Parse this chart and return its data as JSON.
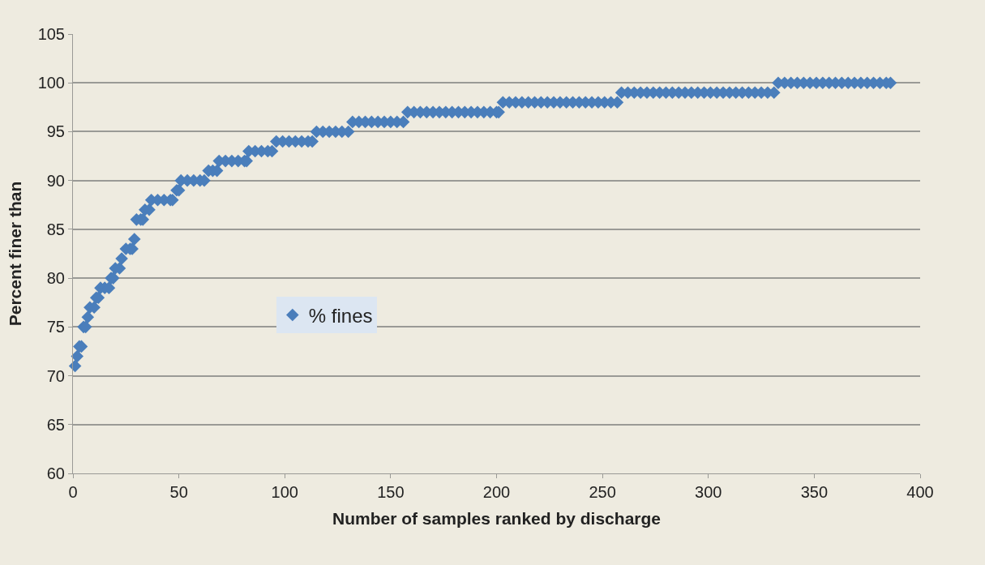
{
  "chart_data": {
    "type": "scatter",
    "xlabel": "Number of samples ranked by discharge",
    "ylabel": "Percent finer than",
    "x": [
      1,
      2,
      3,
      4,
      5,
      6,
      7,
      8,
      10,
      11,
      12,
      13,
      15,
      17,
      18,
      19,
      20,
      22,
      23,
      25,
      27,
      28,
      29,
      30,
      32,
      33,
      34,
      36,
      37,
      40,
      43,
      46,
      47,
      49,
      50,
      51,
      54,
      57,
      60,
      62,
      64,
      66,
      68,
      69,
      72,
      75,
      78,
      81,
      82,
      83,
      86,
      89,
      92,
      94,
      96,
      99,
      102,
      105,
      108,
      111,
      113,
      115,
      118,
      121,
      124,
      127,
      130,
      132,
      135,
      138,
      141,
      144,
      147,
      150,
      153,
      156,
      158,
      161,
      164,
      167,
      170,
      173,
      176,
      179,
      182,
      185,
      188,
      191,
      194,
      197,
      200,
      201,
      203,
      206,
      209,
      212,
      215,
      218,
      221,
      224,
      227,
      230,
      233,
      236,
      239,
      242,
      245,
      248,
      251,
      254,
      257,
      259,
      262,
      265,
      268,
      271,
      274,
      277,
      280,
      283,
      286,
      289,
      292,
      295,
      298,
      301,
      304,
      307,
      310,
      313,
      316,
      319,
      322,
      325,
      328,
      331,
      333,
      336,
      339,
      342,
      345,
      348,
      351,
      354,
      357,
      360,
      363,
      366,
      369,
      372,
      375,
      378,
      381,
      384,
      386
    ],
    "series": [
      {
        "name": "% fines",
        "color": "#4a7ebb",
        "values": [
          71,
          72,
          73,
          73,
          75,
          75,
          76,
          77,
          77,
          78,
          78,
          79,
          79,
          79,
          80,
          80,
          81,
          81,
          82,
          83,
          83,
          83,
          84,
          86,
          86,
          86,
          87,
          87,
          88,
          88,
          88,
          88,
          88,
          89,
          89,
          90,
          90,
          90,
          90,
          90,
          91,
          91,
          91,
          92,
          92,
          92,
          92,
          92,
          92,
          93,
          93,
          93,
          93,
          93,
          94,
          94,
          94,
          94,
          94,
          94,
          94,
          95,
          95,
          95,
          95,
          95,
          95,
          96,
          96,
          96,
          96,
          96,
          96,
          96,
          96,
          96,
          97,
          97,
          97,
          97,
          97,
          97,
          97,
          97,
          97,
          97,
          97,
          97,
          97,
          97,
          97,
          97,
          98,
          98,
          98,
          98,
          98,
          98,
          98,
          98,
          98,
          98,
          98,
          98,
          98,
          98,
          98,
          98,
          98,
          98,
          98,
          99,
          99,
          99,
          99,
          99,
          99,
          99,
          99,
          99,
          99,
          99,
          99,
          99,
          99,
          99,
          99,
          99,
          99,
          99,
          99,
          99,
          99,
          99,
          99,
          99,
          100,
          100,
          100,
          100,
          100,
          100,
          100,
          100,
          100,
          100,
          100,
          100,
          100,
          100,
          100,
          100,
          100,
          100,
          100
        ]
      }
    ],
    "xlim": [
      0,
      400
    ],
    "xticks": [
      0,
      50,
      100,
      150,
      200,
      250,
      300,
      350,
      400
    ],
    "ylim": [
      60,
      105
    ],
    "yticks": [
      60,
      65,
      70,
      75,
      80,
      85,
      90,
      95,
      100,
      105
    ],
    "grid": "y",
    "legend": "center left",
    "marker": "diamond"
  }
}
